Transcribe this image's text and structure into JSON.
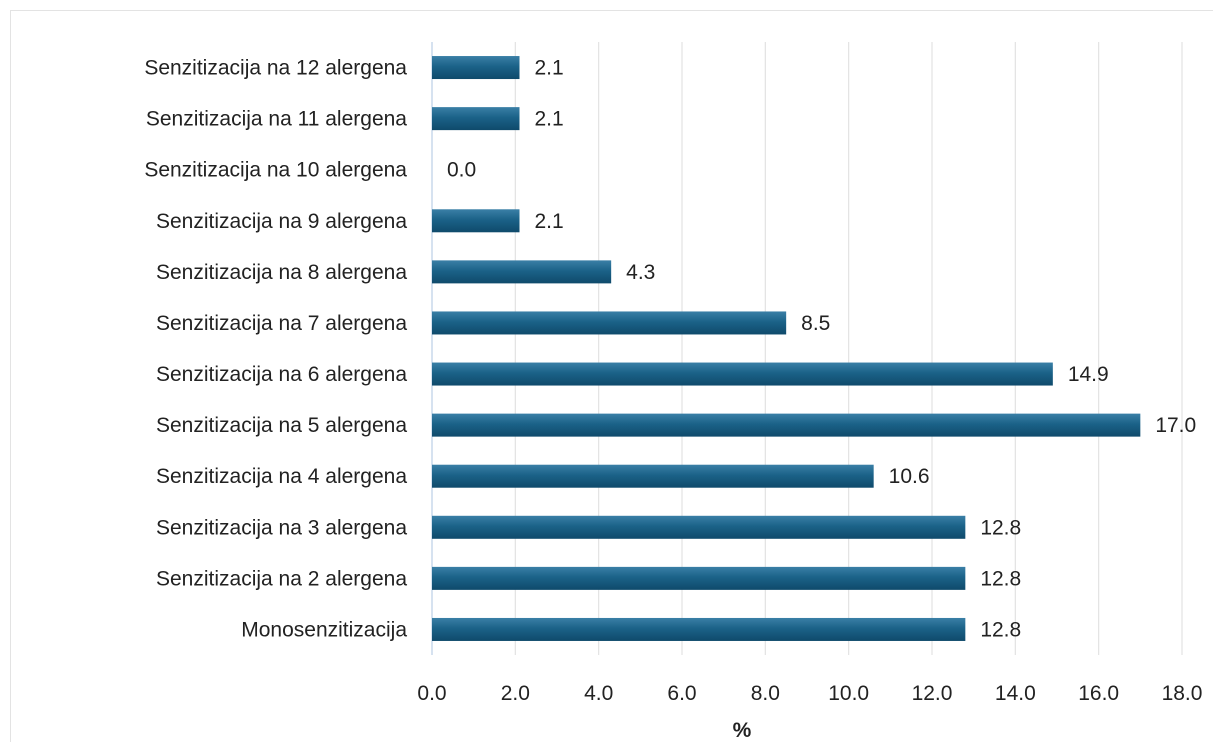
{
  "chart_data": {
    "type": "bar",
    "orientation": "horizontal",
    "categories": [
      "Senzitizacija na 12 alergena",
      "Senzitizacija na 11 alergena",
      "Senzitizacija na 10 alergena",
      "Senzitizacija na 9 alergena",
      "Senzitizacija na 8 alergena",
      "Senzitizacija na 7 alergena",
      "Senzitizacija na 6 alergena",
      "Senzitizacija na 5 alergena",
      "Senzitizacija na 4 alergena",
      "Senzitizacija na 3 alergena",
      "Senzitizacija na 2 alergena",
      "Monosenzitizacija"
    ],
    "values": [
      2.1,
      2.1,
      0.0,
      2.1,
      4.3,
      8.5,
      14.9,
      17.0,
      10.6,
      12.8,
      12.8,
      12.8
    ],
    "data_labels": [
      "2.1",
      "2.1",
      "0.0",
      "2.1",
      "4.3",
      "8.5",
      "14.9",
      "17.0",
      "10.6",
      "12.8",
      "12.8",
      "12.8"
    ],
    "xlabel": "%",
    "xlim": [
      0,
      18
    ],
    "xticks": [
      "0.0",
      "2.0",
      "4.0",
      "6.0",
      "8.0",
      "10.0",
      "12.0",
      "14.0",
      "16.0",
      "18.0"
    ],
    "grid": "vertical",
    "legend": "none",
    "bar_color": "#175a7e"
  }
}
